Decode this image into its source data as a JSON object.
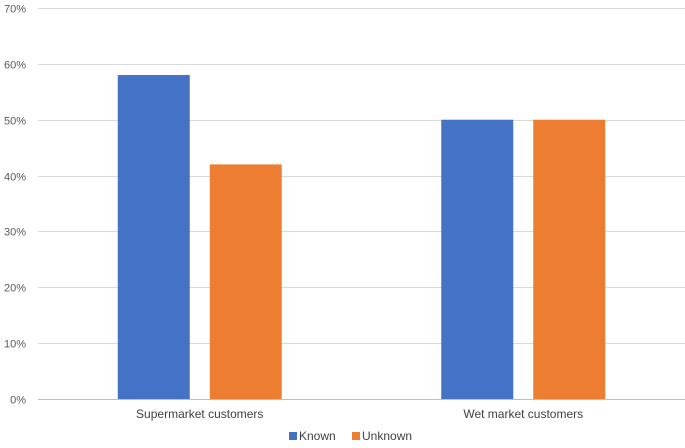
{
  "chart_data": {
    "type": "bar",
    "categories": [
      "Supermarket customers",
      "Wet market customers"
    ],
    "series": [
      {
        "name": "Known",
        "values": [
          58,
          50
        ],
        "color": "#4472C4"
      },
      {
        "name": "Unknown",
        "values": [
          42,
          50
        ],
        "color": "#ED7D31"
      }
    ],
    "ylim": [
      0,
      70
    ],
    "yticks": [
      0,
      10,
      20,
      30,
      40,
      50,
      60,
      70
    ],
    "ytick_labels": [
      "0%",
      "10%",
      "20%",
      "30%",
      "40%",
      "50%",
      "60%",
      "70%"
    ],
    "grid": true,
    "legend_position": "bottom",
    "title": "",
    "xlabel": "",
    "ylabel": ""
  }
}
